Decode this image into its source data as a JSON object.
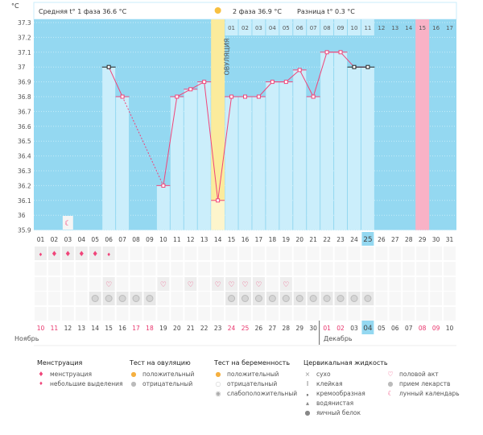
{
  "header": {
    "unit": "°C",
    "phase1": "Средняя t° 1 фаза 36.6 °C",
    "phase2": "2 фаза 36.9 °C",
    "diff": "Разница t° 0.3 °C",
    "ovulation": "ОВУЛЯЦИЯ"
  },
  "colors": {
    "bg": "#94d8f1",
    "light": "#cbeefb",
    "line": "#f0457a",
    "ovu": "#fbeb9c",
    "pink": "#f9b2c6"
  },
  "chart_data": {
    "type": "line",
    "yticks": [
      "37.3",
      "37.2",
      "37.1",
      "37",
      "36.9",
      "36.8",
      "36.7",
      "36.6",
      "36.5",
      "36.4",
      "36.3",
      "36.2",
      "36.1",
      "36",
      "35.9"
    ],
    "ylim": [
      35.9,
      37.3
    ],
    "days": [
      "01",
      "02",
      "03",
      "04",
      "05",
      "06",
      "07",
      "08",
      "09",
      "10",
      "11",
      "12",
      "13",
      "14",
      "15",
      "16",
      "17",
      "18",
      "19",
      "20",
      "21",
      "22",
      "23",
      "24",
      "25",
      "26",
      "27",
      "28",
      "29",
      "30",
      "31"
    ],
    "temps": [
      null,
      null,
      null,
      null,
      null,
      37.0,
      36.8,
      null,
      null,
      36.2,
      36.8,
      36.85,
      36.9,
      36.1,
      36.8,
      36.8,
      36.8,
      36.9,
      36.9,
      36.98,
      36.8,
      37.1,
      37.1,
      37.0,
      37.0,
      null,
      null,
      null,
      null,
      null,
      null
    ],
    "excluded": [
      6,
      24,
      25
    ],
    "ovulation_day": 14,
    "pink_day": 29,
    "today_day": 25,
    "moon_day": 3,
    "phase2_days": [
      "01",
      "02",
      "03",
      "04",
      "05",
      "06",
      "07",
      "08",
      "09",
      "10",
      "11",
      "12",
      "13",
      "14",
      "15",
      "16",
      "17"
    ]
  },
  "rows": {
    "menstruation": {
      "2": "heavy",
      "3": "heavy",
      "4": "heavy",
      "5": "heavy",
      "1": "light",
      "6": "light"
    },
    "sex": [
      6,
      10,
      12,
      14,
      15,
      16,
      17,
      19
    ],
    "pills": [
      5,
      6,
      7,
      8,
      9,
      15,
      16,
      17,
      18,
      19,
      20,
      21,
      22,
      23,
      24,
      25
    ]
  },
  "calendar": {
    "dates": [
      "10",
      "11",
      "12",
      "13",
      "14",
      "15",
      "16",
      "17",
      "18",
      "19",
      "20",
      "21",
      "22",
      "23",
      "24",
      "25",
      "26",
      "27",
      "28",
      "29",
      "30",
      "01",
      "02",
      "03",
      "04",
      "05",
      "06",
      "07",
      "08",
      "09",
      "10"
    ],
    "weekend": [
      0,
      1,
      7,
      8,
      14,
      15,
      21,
      22,
      28,
      29
    ],
    "today": 24,
    "month1": "Ноябрь",
    "month2": "Декабрь"
  },
  "legend": {
    "menstr": {
      "title": "Менструация",
      "items": [
        "менструация",
        "небольшие выделения"
      ]
    },
    "ovtest": {
      "title": "Тест на овуляцию",
      "items": [
        "положительный",
        "отрицательный"
      ]
    },
    "preg": {
      "title": "Тест на беременность",
      "items": [
        "положительный",
        "отрицательный",
        "слабоположительный"
      ]
    },
    "cerv": {
      "title": "Цервикальная жидкость",
      "items": [
        "сухо",
        "клейкая",
        "кремообразная",
        "водянистая",
        "яичный белок"
      ]
    },
    "other": {
      "items": [
        "половой акт",
        "прием лекарств",
        "лунный календарь"
      ]
    }
  }
}
